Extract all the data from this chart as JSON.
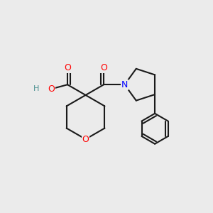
{
  "background_color": "#ebebeb",
  "atom_colors": {
    "O": "#ff0000",
    "N": "#0000ff",
    "C": "#000000",
    "H": "#4a9090"
  },
  "bond_color": "#1a1a1a",
  "bond_width": 1.5,
  "font_size_atoms": 9,
  "font_size_H": 8,
  "xlim": [
    -0.5,
    5.0
  ],
  "ylim": [
    -0.5,
    4.5
  ]
}
